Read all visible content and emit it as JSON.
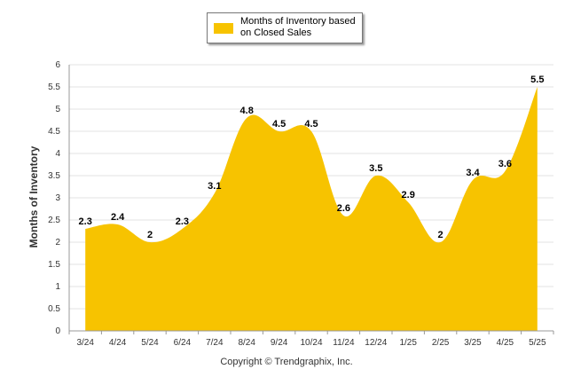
{
  "legend": {
    "label": "Months of Inventory based on Closed Sales"
  },
  "copyright": "Copyright © Trendgraphix, Inc.",
  "chart_data": {
    "type": "area",
    "title": "",
    "xlabel": "",
    "ylabel": "Months of Inventory",
    "ylim": [
      0,
      6
    ],
    "yticks": [
      "0",
      "0.5",
      "1",
      "1.5",
      "2",
      "2.5",
      "3",
      "3.5",
      "4",
      "4.5",
      "5",
      "5.5",
      "6"
    ],
    "categories": [
      "3/24",
      "4/24",
      "5/24",
      "6/24",
      "7/24",
      "8/24",
      "9/24",
      "10/24",
      "11/24",
      "12/24",
      "1/25",
      "2/25",
      "3/25",
      "4/25",
      "5/25"
    ],
    "series": [
      {
        "name": "Months of Inventory based on Closed Sales",
        "values": [
          2.3,
          2.4,
          2.0,
          2.3,
          3.1,
          4.8,
          4.5,
          4.5,
          2.6,
          3.5,
          2.9,
          2.0,
          3.4,
          3.6,
          5.5
        ],
        "labels": [
          "2.3",
          "2.4",
          "2",
          "2.3",
          "3.1",
          "4.8",
          "4.5",
          "4.5",
          "2.6",
          "3.5",
          "2.9",
          "2",
          "3.4",
          "3.6",
          "5.5"
        ]
      }
    ],
    "colors": {
      "fill": "#F7C300",
      "grid": "#e3e3e3",
      "axis": "#999999"
    },
    "grid": true,
    "legend_position": "top"
  }
}
